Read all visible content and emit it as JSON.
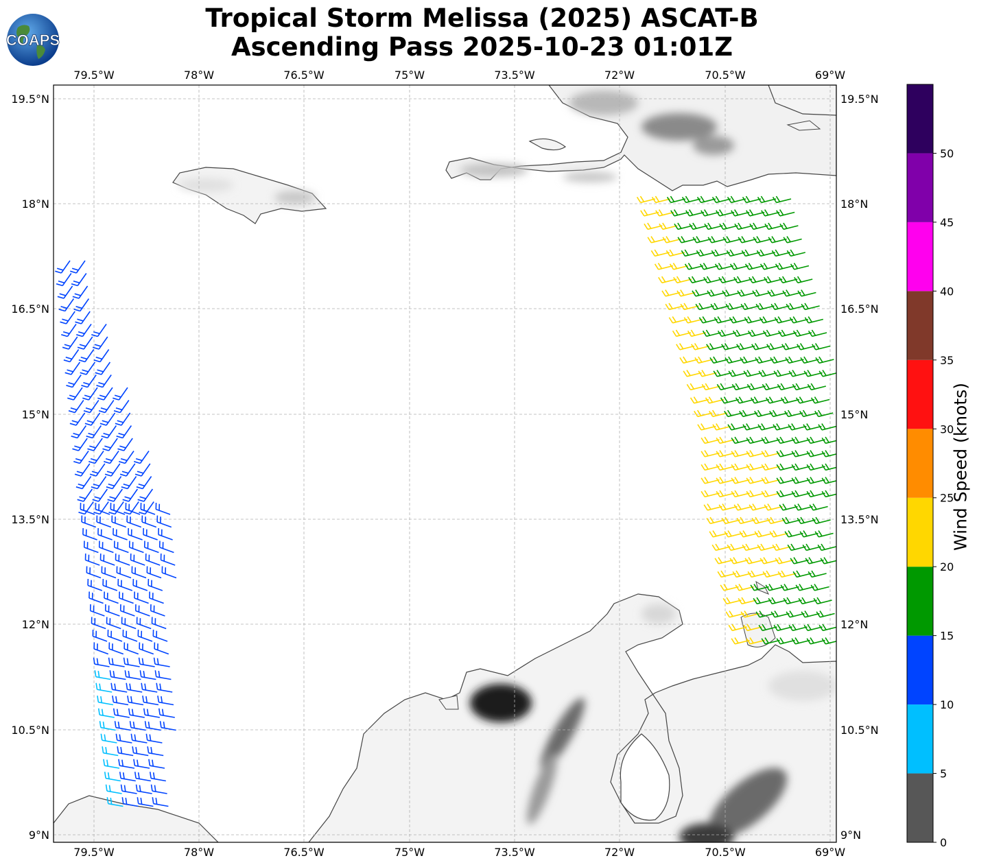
{
  "title": {
    "line1": "Tropical Storm Melissa (2025) ASCAT-B",
    "line2": "Ascending Pass 2025-10-23 01:01Z"
  },
  "logo": {
    "text": "COAPS",
    "icon": "globe-icon"
  },
  "map": {
    "lon_ticks": [
      "79.5°W",
      "78°W",
      "76.5°W",
      "75°W",
      "73.5°W",
      "72°W",
      "70.5°W",
      "69°W"
    ],
    "lat_ticks": [
      "19.5°N",
      "18°N",
      "16.5°N",
      "15°N",
      "13.5°N",
      "12°N",
      "10.5°N",
      "9°N"
    ],
    "lon_range": [
      -80.08,
      -68.93
    ],
    "lat_range": [
      8.9,
      19.7
    ],
    "gridlines": true,
    "features": [
      "coastlines",
      "terrain-shading",
      "wind-barbs"
    ]
  },
  "colorbar": {
    "label": "Wind Speed (knots)",
    "ticks": [
      "0",
      "5",
      "10",
      "15",
      "20",
      "25",
      "30",
      "35",
      "40",
      "45",
      "50"
    ],
    "bins": [
      {
        "min": 0,
        "max": 5,
        "color": "#575757"
      },
      {
        "min": 5,
        "max": 10,
        "color": "#00bfff"
      },
      {
        "min": 10,
        "max": 15,
        "color": "#0044ff"
      },
      {
        "min": 15,
        "max": 20,
        "color": "#009900"
      },
      {
        "min": 20,
        "max": 25,
        "color": "#ffd700"
      },
      {
        "min": 25,
        "max": 30,
        "color": "#ff8c00"
      },
      {
        "min": 30,
        "max": 35,
        "color": "#ff1111"
      },
      {
        "min": 35,
        "max": 40,
        "color": "#80392a"
      },
      {
        "min": 40,
        "max": 45,
        "color": "#ff00ee"
      },
      {
        "min": 45,
        "max": 50,
        "color": "#8000aa"
      },
      {
        "min": 50,
        "max": 55,
        "color": "#2e005e"
      }
    ]
  },
  "swaths": [
    {
      "name": "western swath",
      "dominant_speed_kt": "10-15",
      "lon_span": [
        -80.08,
        -78.3
      ],
      "lat_span": [
        9.0,
        17.4
      ]
    },
    {
      "name": "eastern swath",
      "dominant_speed_kt": "15-25",
      "lon_span": [
        -71.4,
        -68.93
      ],
      "lat_span": [
        11.5,
        18.4
      ]
    }
  ]
}
